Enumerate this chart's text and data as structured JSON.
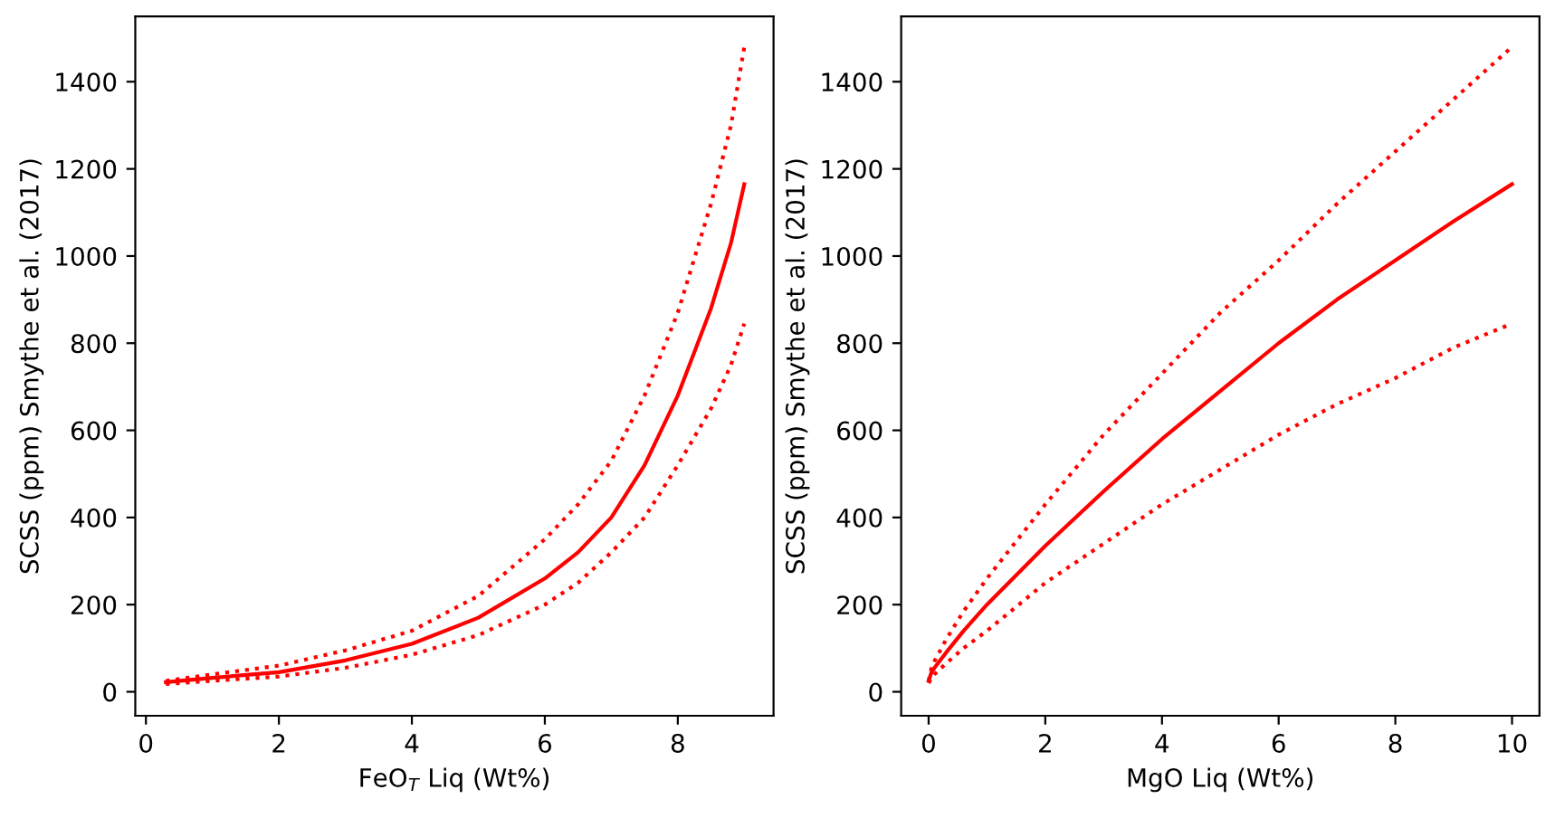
{
  "chart_data": [
    {
      "type": "line",
      "xlabel": "FeO$_{T}$ Liq (Wt%)",
      "ylabel": "SCSS (ppm) Smythe et al. (2017)",
      "xlim": [
        -0.16,
        9.44
      ],
      "ylim": [
        -55,
        1550
      ],
      "xticks": [
        0,
        2,
        4,
        6,
        8
      ],
      "yticks": [
        0,
        200,
        400,
        600,
        800,
        1000,
        1200,
        1400
      ],
      "grid": false,
      "series": [
        {
          "color": "#ff0000",
          "line_style": "solid",
          "x": [
            0.3,
            1,
            2,
            3,
            4,
            5,
            6,
            6.5,
            7,
            7.5,
            8,
            8.5,
            8.8,
            9
          ],
          "values": [
            22,
            32,
            45,
            72,
            110,
            170,
            260,
            320,
            400,
            520,
            680,
            880,
            1030,
            1165
          ]
        },
        {
          "color": "#ff0000",
          "line_style": "dotted",
          "x": [
            0.3,
            1,
            2,
            3,
            4,
            5,
            6,
            6.5,
            7,
            7.5,
            8,
            8.5,
            8.8,
            9
          ],
          "values": [
            25,
            40,
            60,
            95,
            140,
            220,
            350,
            430,
            530,
            680,
            870,
            1120,
            1300,
            1480
          ]
        },
        {
          "color": "#ff0000",
          "line_style": "dotted",
          "x": [
            0.3,
            1,
            2,
            3,
            4,
            5,
            6,
            6.5,
            7,
            7.5,
            8,
            8.5,
            8.8,
            9
          ],
          "values": [
            18,
            25,
            35,
            55,
            85,
            130,
            200,
            250,
            320,
            400,
            520,
            650,
            750,
            845
          ]
        }
      ]
    },
    {
      "type": "line",
      "xlabel": "MgO Liq (Wt%)",
      "ylabel": "SCSS (ppm) Smythe et al. (2017)",
      "xlim": [
        -0.47,
        10.47
      ],
      "ylim": [
        -55,
        1550
      ],
      "xticks": [
        0,
        2,
        4,
        6,
        8,
        10
      ],
      "yticks": [
        0,
        200,
        400,
        600,
        800,
        1000,
        1200,
        1400
      ],
      "grid": false,
      "series": [
        {
          "color": "#ff0000",
          "line_style": "solid",
          "x": [
            0,
            0.05,
            0.1,
            0.3,
            0.6,
            1,
            2,
            3,
            4,
            5,
            6,
            7,
            8,
            9,
            10
          ],
          "values": [
            25,
            45,
            55,
            90,
            140,
            200,
            335,
            460,
            580,
            690,
            800,
            900,
            990,
            1080,
            1165
          ]
        },
        {
          "color": "#ff0000",
          "line_style": "dotted",
          "x": [
            0,
            0.05,
            0.1,
            0.3,
            0.6,
            1,
            2,
            3,
            4,
            5,
            6,
            7,
            8,
            9,
            10
          ],
          "values": [
            25,
            55,
            70,
            120,
            185,
            260,
            430,
            590,
            730,
            870,
            990,
            1120,
            1240,
            1360,
            1480
          ]
        },
        {
          "color": "#ff0000",
          "line_style": "dotted",
          "x": [
            0,
            0.05,
            0.1,
            0.3,
            0.6,
            1,
            2,
            3,
            4,
            5,
            6,
            7,
            8,
            9,
            10
          ],
          "values": [
            20,
            32,
            40,
            65,
            100,
            140,
            250,
            340,
            430,
            510,
            590,
            660,
            720,
            790,
            845
          ]
        }
      ]
    }
  ]
}
